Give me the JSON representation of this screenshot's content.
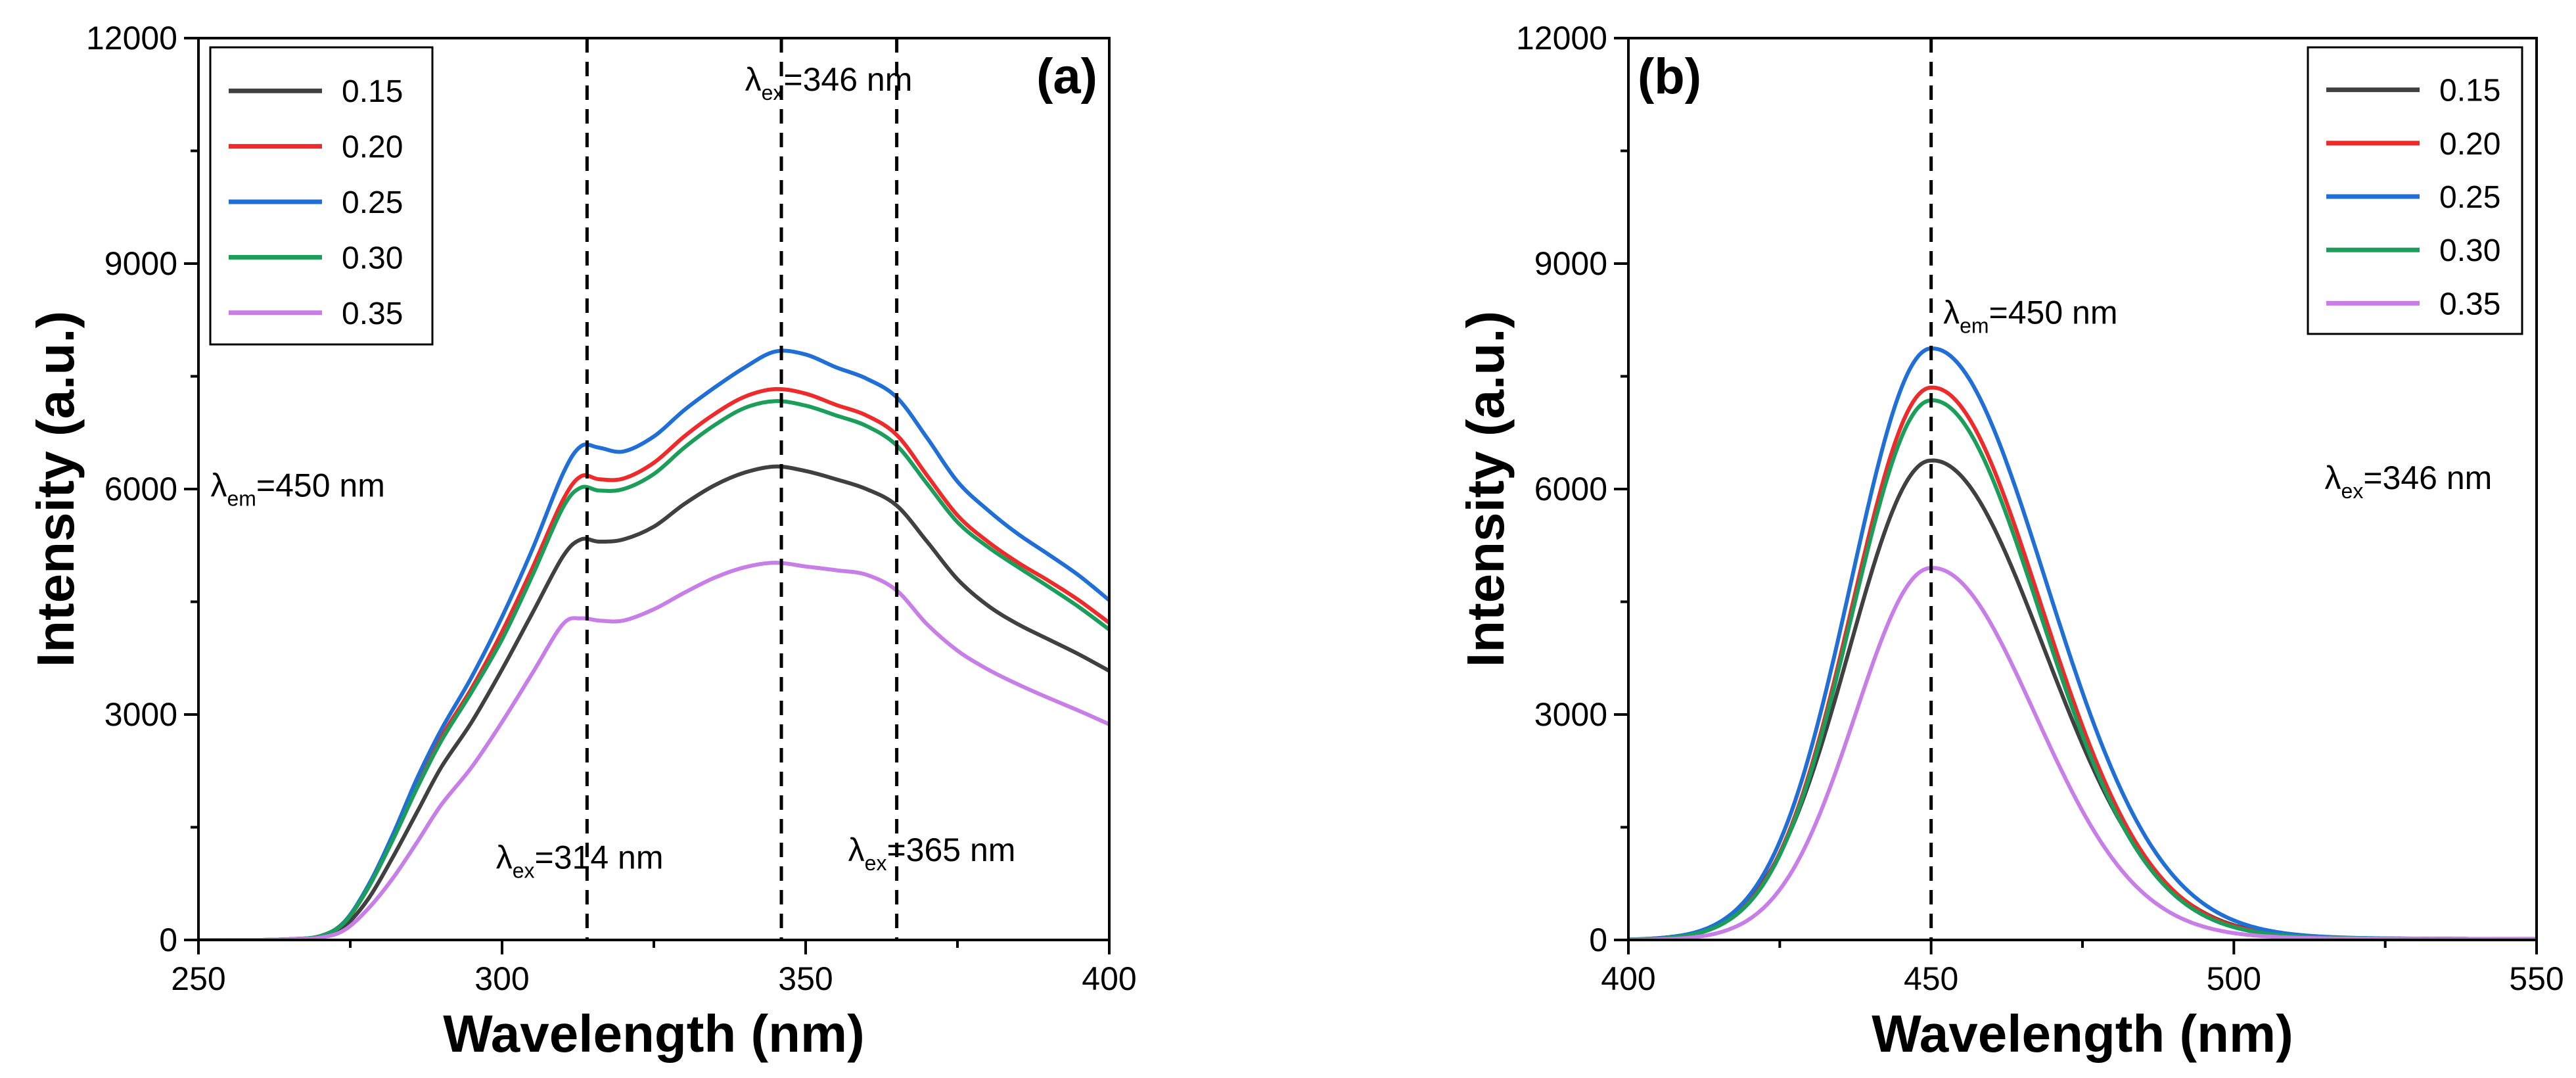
{
  "chart_data": [
    {
      "type": "line",
      "panel_label": "(a)",
      "xlabel": "Wavelength (nm)",
      "ylabel": "Intensity (a.u.)",
      "xlim": [
        250,
        400
      ],
      "ylim": [
        0,
        12000
      ],
      "x_ticks": [
        "250",
        "300",
        "350",
        "400"
      ],
      "y_ticks": [
        "0",
        "3000",
        "6000",
        "9000",
        "12000"
      ],
      "x_tick_values": [
        250,
        300,
        350,
        400
      ],
      "y_tick_values": [
        0,
        3000,
        6000,
        9000,
        12000
      ],
      "grid": false,
      "legend_position": "top-left",
      "vlines": [
        314,
        346,
        365
      ],
      "annotations": [
        {
          "greek": "λ",
          "sub": "ex",
          "text": "=346 nm",
          "x": 340,
          "y": 11300
        },
        {
          "greek": "λ",
          "sub": "em",
          "text": "=450 nm",
          "x": 252,
          "y": 5900
        },
        {
          "greek": "λ",
          "sub": "ex",
          "text": "=314 nm",
          "x": 299,
          "y": 950
        },
        {
          "greek": "λ",
          "sub": "ex",
          "text": "=365 nm",
          "x": 357,
          "y": 1050
        }
      ],
      "x": [
        250,
        260,
        265,
        270,
        274,
        278,
        282,
        286,
        290,
        295,
        300,
        305,
        310,
        313,
        316,
        320,
        325,
        330,
        335,
        340,
        345,
        350,
        355,
        360,
        365,
        370,
        375,
        380,
        385,
        390,
        395,
        400
      ],
      "series": [
        {
          "name": "0.15",
          "color": "#404040",
          "values": [
            0,
            0,
            10,
            40,
            180,
            550,
            1100,
            1700,
            2300,
            2900,
            3600,
            4350,
            5100,
            5330,
            5300,
            5330,
            5500,
            5800,
            6050,
            6220,
            6300,
            6240,
            6130,
            6000,
            5780,
            5300,
            4800,
            4450,
            4200,
            4000,
            3800,
            3580
          ]
        },
        {
          "name": "0.20",
          "color": "#ee2a2a",
          "values": [
            0,
            0,
            10,
            50,
            230,
            700,
            1350,
            2050,
            2700,
            3350,
            4100,
            4950,
            5850,
            6170,
            6130,
            6140,
            6350,
            6700,
            7000,
            7230,
            7330,
            7270,
            7120,
            6980,
            6720,
            6180,
            5650,
            5300,
            5020,
            4780,
            4520,
            4220
          ]
        },
        {
          "name": "0.25",
          "color": "#1f6fd6",
          "values": [
            0,
            0,
            10,
            50,
            240,
            730,
            1400,
            2150,
            2800,
            3500,
            4300,
            5200,
            6200,
            6570,
            6550,
            6500,
            6700,
            7050,
            7350,
            7620,
            7830,
            7790,
            7620,
            7470,
            7220,
            6680,
            6100,
            5720,
            5400,
            5130,
            4850,
            4520
          ]
        },
        {
          "name": "0.30",
          "color": "#1b9e5a",
          "values": [
            0,
            0,
            10,
            50,
            230,
            700,
            1330,
            2020,
            2650,
            3300,
            4000,
            4850,
            5750,
            6020,
            5980,
            6000,
            6200,
            6550,
            6850,
            7080,
            7170,
            7110,
            6980,
            6840,
            6580,
            6070,
            5560,
            5230,
            4960,
            4700,
            4430,
            4130
          ]
        },
        {
          "name": "0.35",
          "color": "#c77ee6",
          "values": [
            0,
            0,
            8,
            30,
            130,
            420,
            820,
            1300,
            1800,
            2300,
            2900,
            3550,
            4200,
            4280,
            4250,
            4250,
            4400,
            4620,
            4820,
            4960,
            5020,
            4970,
            4920,
            4860,
            4650,
            4200,
            3850,
            3600,
            3400,
            3220,
            3050,
            2870
          ]
        }
      ]
    },
    {
      "type": "line",
      "panel_label": "(b)",
      "xlabel": "Wavelength (nm)",
      "ylabel": "Intensity (a.u.)",
      "xlim": [
        400,
        550
      ],
      "ylim": [
        0,
        12000
      ],
      "x_ticks": [
        "400",
        "450",
        "500",
        "550"
      ],
      "y_ticks": [
        "0",
        "3000",
        "6000",
        "9000",
        "12000"
      ],
      "x_tick_values": [
        400,
        450,
        500,
        550
      ],
      "y_tick_values": [
        0,
        3000,
        6000,
        9000,
        12000
      ],
      "grid": false,
      "legend_position": "top-right",
      "vlines": [
        450
      ],
      "annotations": [
        {
          "greek": "λ",
          "sub": "em",
          "text": "=450 nm",
          "x": 452,
          "y": 8200
        },
        {
          "greek": "λ",
          "sub": "ex",
          "text": "=346 nm",
          "x": 515,
          "y": 6000
        }
      ],
      "x": [
        400,
        405,
        410,
        415,
        420,
        425,
        430,
        435,
        440,
        445,
        450,
        455,
        460,
        465,
        470,
        475,
        480,
        485,
        490,
        495,
        500,
        505,
        510,
        520,
        530,
        540,
        550
      ],
      "series": [
        {
          "name": "0.15",
          "color": "#404040",
          "sigma_left": 13.5,
          "sigma_right": 18.5,
          "tail": 60,
          "peak": 6380
        },
        {
          "name": "0.20",
          "color": "#ee2a2a",
          "sigma_left": 13.0,
          "sigma_right": 18.0,
          "tail": 60,
          "peak": 7350
        },
        {
          "name": "0.25",
          "color": "#1f6fd6",
          "sigma_left": 13.2,
          "sigma_right": 18.8,
          "tail": 60,
          "peak": 7870
        },
        {
          "name": "0.30",
          "color": "#1b9e5a",
          "sigma_left": 13.0,
          "sigma_right": 17.8,
          "tail": 60,
          "peak": 7180
        },
        {
          "name": "0.35",
          "color": "#c77ee6",
          "sigma_left": 12.5,
          "sigma_right": 17.0,
          "tail": 50,
          "peak": 4950
        }
      ]
    }
  ]
}
